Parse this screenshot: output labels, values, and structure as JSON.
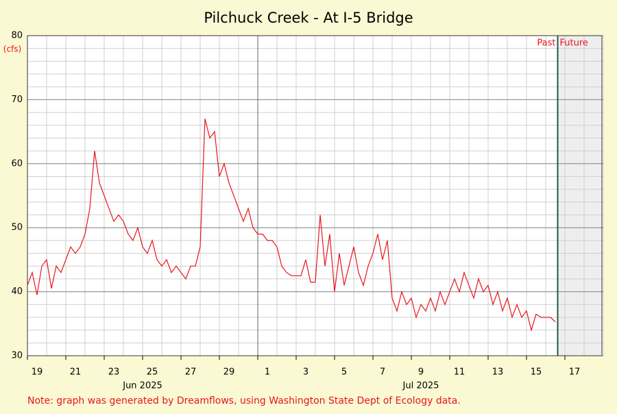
{
  "chart_data": {
    "type": "line",
    "title": "Pilchuck Creek - At I-5 Bridge",
    "y_unit": "(cfs)",
    "past_label": "Past",
    "future_label": "Future",
    "now": "2025-07-16 15:00",
    "note": "Note: graph was generated by Dreamflows, using Washington State Dept of Ecology data.",
    "xlim": [
      "2025-06-19 00:00",
      "2025-07-19 00:00"
    ],
    "xticks": [
      {
        "value": "2025-06-19",
        "label": "19"
      },
      {
        "value": "2025-06-21",
        "label": "21"
      },
      {
        "value": "2025-06-23",
        "label": "23"
      },
      {
        "value": "2025-06-25",
        "label": "25"
      },
      {
        "value": "2025-06-27",
        "label": "27"
      },
      {
        "value": "2025-06-29",
        "label": "29"
      },
      {
        "value": "2025-07-01",
        "label": "1"
      },
      {
        "value": "2025-07-03",
        "label": "3"
      },
      {
        "value": "2025-07-05",
        "label": "5"
      },
      {
        "value": "2025-07-07",
        "label": "7"
      },
      {
        "value": "2025-07-09",
        "label": "9"
      },
      {
        "value": "2025-07-11",
        "label": "11"
      },
      {
        "value": "2025-07-13",
        "label": "13"
      },
      {
        "value": "2025-07-15",
        "label": "15"
      },
      {
        "value": "2025-07-17",
        "label": "17"
      }
    ],
    "month_labels": [
      {
        "value": "2025-06-25 00:00",
        "label": "Jun 2025"
      },
      {
        "value": "2025-07-09 12:00",
        "label": "Jul 2025"
      }
    ],
    "ylim": [
      30,
      80
    ],
    "yticks": [
      30,
      40,
      50,
      60,
      70,
      80
    ],
    "grid": true,
    "x": [
      "2025-06-19 00:00",
      "2025-06-19 06:00",
      "2025-06-19 12:00",
      "2025-06-19 18:00",
      "2025-06-20 00:00",
      "2025-06-20 06:00",
      "2025-06-20 12:00",
      "2025-06-20 18:00",
      "2025-06-21 00:00",
      "2025-06-21 06:00",
      "2025-06-21 12:00",
      "2025-06-21 18:00",
      "2025-06-22 00:00",
      "2025-06-22 06:00",
      "2025-06-22 12:00",
      "2025-06-22 18:00",
      "2025-06-23 00:00",
      "2025-06-23 06:00",
      "2025-06-23 12:00",
      "2025-06-23 18:00",
      "2025-06-24 00:00",
      "2025-06-24 06:00",
      "2025-06-24 12:00",
      "2025-06-24 18:00",
      "2025-06-25 00:00",
      "2025-06-25 06:00",
      "2025-06-25 12:00",
      "2025-06-25 18:00",
      "2025-06-26 00:00",
      "2025-06-26 06:00",
      "2025-06-26 12:00",
      "2025-06-26 18:00",
      "2025-06-27 00:00",
      "2025-06-27 06:00",
      "2025-06-27 12:00",
      "2025-06-27 18:00",
      "2025-06-28 00:00",
      "2025-06-28 06:00",
      "2025-06-28 12:00",
      "2025-06-28 18:00",
      "2025-06-29 00:00",
      "2025-06-29 06:00",
      "2025-06-29 12:00",
      "2025-06-29 18:00",
      "2025-06-30 00:00",
      "2025-06-30 06:00",
      "2025-06-30 12:00",
      "2025-06-30 18:00",
      "2025-07-01 00:00",
      "2025-07-01 06:00",
      "2025-07-01 12:00",
      "2025-07-01 18:00",
      "2025-07-02 00:00",
      "2025-07-02 06:00",
      "2025-07-02 12:00",
      "2025-07-02 18:00",
      "2025-07-03 00:00",
      "2025-07-03 06:00",
      "2025-07-03 12:00",
      "2025-07-03 18:00",
      "2025-07-04 00:00",
      "2025-07-04 06:00",
      "2025-07-04 12:00",
      "2025-07-04 18:00",
      "2025-07-05 00:00",
      "2025-07-05 06:00",
      "2025-07-05 12:00",
      "2025-07-05 18:00",
      "2025-07-06 00:00",
      "2025-07-06 06:00",
      "2025-07-06 12:00",
      "2025-07-06 18:00",
      "2025-07-07 00:00",
      "2025-07-07 06:00",
      "2025-07-07 12:00",
      "2025-07-07 18:00",
      "2025-07-08 00:00",
      "2025-07-08 06:00",
      "2025-07-08 12:00",
      "2025-07-08 18:00",
      "2025-07-09 00:00",
      "2025-07-09 06:00",
      "2025-07-09 12:00",
      "2025-07-09 18:00",
      "2025-07-10 00:00",
      "2025-07-10 06:00",
      "2025-07-10 12:00",
      "2025-07-10 18:00",
      "2025-07-11 00:00",
      "2025-07-11 06:00",
      "2025-07-11 12:00",
      "2025-07-11 18:00",
      "2025-07-12 00:00",
      "2025-07-12 06:00",
      "2025-07-12 12:00",
      "2025-07-12 18:00",
      "2025-07-13 00:00",
      "2025-07-13 06:00",
      "2025-07-13 12:00",
      "2025-07-13 18:00",
      "2025-07-14 00:00",
      "2025-07-14 06:00",
      "2025-07-14 12:00",
      "2025-07-14 18:00",
      "2025-07-15 00:00",
      "2025-07-15 06:00",
      "2025-07-15 12:00",
      "2025-07-15 18:00",
      "2025-07-16 00:00",
      "2025-07-16 06:00",
      "2025-07-16 12:00"
    ],
    "series": [
      {
        "name": "Flow",
        "color": "#e8141c",
        "values": [
          41,
          43,
          39.5,
          44,
          45,
          40.5,
          44,
          43,
          45,
          47,
          46,
          47,
          49,
          53,
          62,
          57,
          55,
          53,
          51,
          52,
          51,
          49,
          48,
          50,
          47,
          46,
          48,
          45,
          44,
          45,
          43,
          44,
          43,
          42,
          44,
          44,
          47,
          67,
          64,
          65,
          58,
          60,
          57,
          55,
          53,
          51,
          53,
          50,
          49,
          49,
          48,
          48,
          47,
          44,
          43,
          42.5,
          42.5,
          42.5,
          45,
          41.5,
          41.5,
          52,
          44,
          49,
          40,
          46,
          41,
          44,
          47,
          43,
          41,
          44,
          46,
          49,
          45,
          48,
          39,
          37,
          40,
          38,
          39,
          36,
          38,
          37,
          39,
          37,
          40,
          38,
          40,
          42,
          40,
          43,
          41,
          39,
          42,
          40,
          41,
          38,
          40,
          37,
          39,
          36,
          38,
          36,
          37,
          34,
          36.5,
          36,
          36,
          36,
          35.3
        ]
      }
    ]
  }
}
